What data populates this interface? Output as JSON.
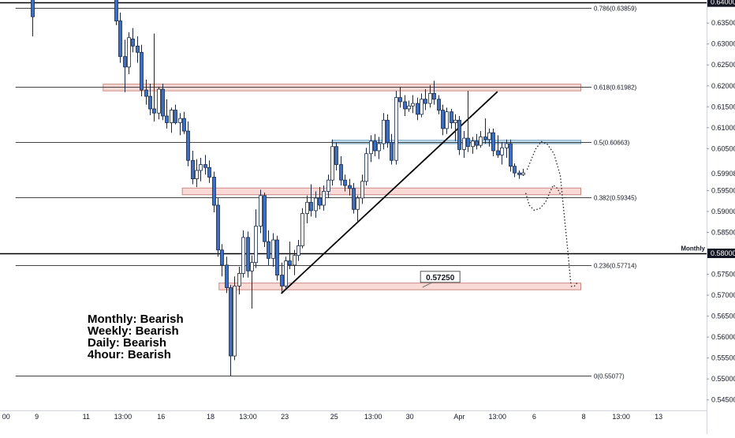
{
  "chart_data": {
    "type": "candlestick",
    "ylim": [
      0.5425,
      0.6405
    ],
    "x_range": [
      0,
      100
    ],
    "y_ticks": [
      "0.63500",
      "0.63000",
      "0.62500",
      "0.62000",
      "0.61500",
      "0.61000",
      "0.60500",
      "0.59500",
      "0.59000",
      "0.58500",
      "0.57500",
      "0.57000",
      "0.56500",
      "0.56000",
      "0.55500",
      "0.55000",
      "0.54500"
    ],
    "y_tick_values": [
      0.635,
      0.63,
      0.625,
      0.62,
      0.615,
      0.61,
      0.605,
      0.595,
      0.59,
      0.585,
      0.575,
      0.57,
      0.565,
      0.56,
      0.555,
      0.55,
      0.545
    ],
    "price_tags": [
      {
        "label": "0.64000",
        "value": 0.64,
        "style": "dark"
      },
      {
        "label": "0.58000",
        "value": 0.58,
        "style": "dark"
      },
      {
        "label": "0.59908",
        "value": 0.59908,
        "style": "plain"
      }
    ],
    "x_ticks": [
      {
        "label": "00",
        "x": 0.3
      },
      {
        "label": "9",
        "x": 5.2
      },
      {
        "label": "11",
        "x": 12.2
      },
      {
        "label": "13:00",
        "x": 17.4
      },
      {
        "label": "16",
        "x": 22.8
      },
      {
        "label": "18",
        "x": 29.8
      },
      {
        "label": "13:00",
        "x": 35.1
      },
      {
        "label": "23",
        "x": 40.3
      },
      {
        "label": "25",
        "x": 47.3
      },
      {
        "label": "13:00",
        "x": 52.8
      },
      {
        "label": "30",
        "x": 58.0
      },
      {
        "label": "Apr",
        "x": 65.0
      },
      {
        "label": "13:00",
        "x": 70.4
      },
      {
        "label": "6",
        "x": 75.6
      },
      {
        "label": "8",
        "x": 82.6
      },
      {
        "label": "13:00",
        "x": 87.9
      },
      {
        "label": "13",
        "x": 93.2
      }
    ],
    "fib_levels": [
      {
        "label": "0.786(0.63859)",
        "value": 0.63859
      },
      {
        "label": "0.618(0.61982)",
        "value": 0.61982
      },
      {
        "label": "0.5(0.60663)",
        "value": 0.60663
      },
      {
        "label": "0.382(0.59345)",
        "value": 0.59345
      },
      {
        "label": "0.236(0.57714)",
        "value": 0.57714
      },
      {
        "label": "0(0.55077)",
        "value": 0.55077
      }
    ],
    "fib_x_range": [
      2.2,
      83.7
    ],
    "level_lines": [
      {
        "label": "Monthly",
        "value": 0.58
      }
    ],
    "zones": [
      {
        "x": [
          14.6,
          82.2
        ],
        "y": [
          0.6188,
          0.6204
        ],
        "color": "red"
      },
      {
        "x": [
          25.8,
          82.2
        ],
        "y": [
          0.594,
          0.5956
        ],
        "color": "red"
      },
      {
        "x": [
          31.0,
          82.2
        ],
        "y": [
          0.5713,
          0.5729
        ],
        "color": "red"
      },
      {
        "x": [
          47.0,
          82.2
        ],
        "y": [
          0.6062,
          0.607
        ],
        "color": "blue"
      }
    ],
    "trendline": {
      "x": [
        39.8,
        70.4
      ],
      "y": [
        0.5704,
        0.6186
      ]
    },
    "projection_path": {
      "x": [
        74.6,
        75.8,
        76.6,
        77.4,
        78.4,
        79.3,
        79.8,
        80.3,
        80.8
      ],
      "y": [
        0.6,
        0.6049,
        0.6067,
        0.6062,
        0.6038,
        0.5985,
        0.59,
        0.5815,
        0.5725
      ]
    },
    "projection_path_2": {
      "x": [
        74.4,
        74.9,
        75.6,
        76.4,
        77.2,
        77.8,
        78.3,
        78.9,
        79.4
      ],
      "y": [
        0.5944,
        0.5915,
        0.5903,
        0.5907,
        0.5922,
        0.5945,
        0.5963,
        0.5955,
        0.5938
      ]
    },
    "projection_tail": {
      "x": [
        80.8,
        81.3,
        81.8
      ],
      "y": [
        0.5721,
        0.5722,
        0.5732
      ]
    },
    "callout": {
      "label": "0.57250",
      "value": 0.5725,
      "x": 62.3,
      "anchor_x": 59.8,
      "anchor_y": 0.5719
    },
    "annotations": [
      "Monthly: Bearish",
      "Weekly: Bearish",
      "Daily: Bearish",
      "4hour: Bearish"
    ],
    "candles": [
      {
        "x": 4.6,
        "o": 0.641,
        "h": 0.641,
        "l": 0.6318,
        "c": 0.6365
      },
      {
        "x": 16.4,
        "o": 0.6415,
        "h": 0.6415,
        "l": 0.6345,
        "c": 0.6355
      },
      {
        "x": 17.0,
        "o": 0.6355,
        "h": 0.6375,
        "l": 0.6255,
        "c": 0.627
      },
      {
        "x": 17.6,
        "o": 0.627,
        "h": 0.631,
        "l": 0.6185,
        "c": 0.6245
      },
      {
        "x": 18.2,
        "o": 0.6245,
        "h": 0.6328,
        "l": 0.6228,
        "c": 0.6315
      },
      {
        "x": 18.8,
        "o": 0.6312,
        "h": 0.6338,
        "l": 0.628,
        "c": 0.6295
      },
      {
        "x": 19.4,
        "o": 0.6295,
        "h": 0.6318,
        "l": 0.6255,
        "c": 0.628
      },
      {
        "x": 20.0,
        "o": 0.628,
        "h": 0.6298,
        "l": 0.6175,
        "c": 0.619
      },
      {
        "x": 20.6,
        "o": 0.619,
        "h": 0.6215,
        "l": 0.6155,
        "c": 0.6175
      },
      {
        "x": 21.2,
        "o": 0.6175,
        "h": 0.6205,
        "l": 0.613,
        "c": 0.6145
      },
      {
        "x": 21.8,
        "o": 0.6145,
        "h": 0.6325,
        "l": 0.6115,
        "c": 0.6135
      },
      {
        "x": 22.4,
        "o": 0.6135,
        "h": 0.6198,
        "l": 0.612,
        "c": 0.6192
      },
      {
        "x": 23.0,
        "o": 0.6192,
        "h": 0.6205,
        "l": 0.6118,
        "c": 0.6128
      },
      {
        "x": 23.6,
        "o": 0.6128,
        "h": 0.6168,
        "l": 0.6098,
        "c": 0.6112
      },
      {
        "x": 24.2,
        "o": 0.6112,
        "h": 0.6148,
        "l": 0.6088,
        "c": 0.6142
      },
      {
        "x": 24.8,
        "o": 0.6142,
        "h": 0.6155,
        "l": 0.6108,
        "c": 0.6112
      },
      {
        "x": 25.4,
        "o": 0.6112,
        "h": 0.6135,
        "l": 0.6082,
        "c": 0.6122
      },
      {
        "x": 26.0,
        "o": 0.6122,
        "h": 0.6138,
        "l": 0.6085,
        "c": 0.6092
      },
      {
        "x": 26.6,
        "o": 0.6092,
        "h": 0.6115,
        "l": 0.6008,
        "c": 0.6022
      },
      {
        "x": 27.2,
        "o": 0.6022,
        "h": 0.6045,
        "l": 0.5965,
        "c": 0.5978
      },
      {
        "x": 27.8,
        "o": 0.5978,
        "h": 0.6025,
        "l": 0.5958,
        "c": 0.5998
      },
      {
        "x": 28.4,
        "o": 0.5998,
        "h": 0.6028,
        "l": 0.5972,
        "c": 0.6012
      },
      {
        "x": 29.0,
        "o": 0.6012,
        "h": 0.6035,
        "l": 0.5988,
        "c": 0.6005
      },
      {
        "x": 29.6,
        "o": 0.6005,
        "h": 0.6022,
        "l": 0.5968,
        "c": 0.5982
      },
      {
        "x": 30.2,
        "o": 0.5982,
        "h": 0.5995,
        "l": 0.5898,
        "c": 0.5915
      },
      {
        "x": 30.8,
        "o": 0.5915,
        "h": 0.5932,
        "l": 0.5792,
        "c": 0.5808
      },
      {
        "x": 31.4,
        "o": 0.5808,
        "h": 0.5822,
        "l": 0.5745,
        "c": 0.5772
      },
      {
        "x": 32.0,
        "o": 0.5772,
        "h": 0.5792,
        "l": 0.5705,
        "c": 0.5718
      },
      {
        "x": 32.6,
        "o": 0.5718,
        "h": 0.5725,
        "l": 0.5508,
        "c": 0.5555
      },
      {
        "x": 33.2,
        "o": 0.5555,
        "h": 0.5745,
        "l": 0.5545,
        "c": 0.5722
      },
      {
        "x": 33.8,
        "o": 0.5722,
        "h": 0.5768,
        "l": 0.5702,
        "c": 0.5752
      },
      {
        "x": 34.4,
        "o": 0.5752,
        "h": 0.5855,
        "l": 0.5742,
        "c": 0.5838
      },
      {
        "x": 35.0,
        "o": 0.5838,
        "h": 0.5852,
        "l": 0.5742,
        "c": 0.5758
      },
      {
        "x": 35.6,
        "o": 0.5758,
        "h": 0.5795,
        "l": 0.5668,
        "c": 0.5778
      },
      {
        "x": 36.2,
        "o": 0.5778,
        "h": 0.5905,
        "l": 0.5765,
        "c": 0.5865
      },
      {
        "x": 36.8,
        "o": 0.5865,
        "h": 0.5952,
        "l": 0.5848,
        "c": 0.5938
      },
      {
        "x": 37.4,
        "o": 0.5938,
        "h": 0.5945,
        "l": 0.5815,
        "c": 0.5828
      },
      {
        "x": 38.0,
        "o": 0.5828,
        "h": 0.5855,
        "l": 0.5772,
        "c": 0.5788
      },
      {
        "x": 38.6,
        "o": 0.5788,
        "h": 0.5848,
        "l": 0.5768,
        "c": 0.5832
      },
      {
        "x": 39.2,
        "o": 0.5832,
        "h": 0.5842,
        "l": 0.5735,
        "c": 0.5748
      },
      {
        "x": 39.8,
        "o": 0.5748,
        "h": 0.5778,
        "l": 0.5708,
        "c": 0.5722
      },
      {
        "x": 40.4,
        "o": 0.5722,
        "h": 0.5792,
        "l": 0.5712,
        "c": 0.5782
      },
      {
        "x": 41.0,
        "o": 0.5782,
        "h": 0.5828,
        "l": 0.5762,
        "c": 0.5772
      },
      {
        "x": 41.6,
        "o": 0.5772,
        "h": 0.5808,
        "l": 0.5748,
        "c": 0.5795
      },
      {
        "x": 42.2,
        "o": 0.5795,
        "h": 0.5832,
        "l": 0.5782,
        "c": 0.5818
      },
      {
        "x": 42.8,
        "o": 0.5818,
        "h": 0.5908,
        "l": 0.5812,
        "c": 0.5895
      },
      {
        "x": 43.4,
        "o": 0.5895,
        "h": 0.5938,
        "l": 0.5872,
        "c": 0.5922
      },
      {
        "x": 44.0,
        "o": 0.5922,
        "h": 0.5965,
        "l": 0.5888,
        "c": 0.5902
      },
      {
        "x": 44.6,
        "o": 0.5902,
        "h": 0.5948,
        "l": 0.5885,
        "c": 0.5932
      },
      {
        "x": 45.2,
        "o": 0.5932,
        "h": 0.5958,
        "l": 0.5905,
        "c": 0.5915
      },
      {
        "x": 45.8,
        "o": 0.5915,
        "h": 0.5962,
        "l": 0.5902,
        "c": 0.5948
      },
      {
        "x": 46.4,
        "o": 0.5948,
        "h": 0.5988,
        "l": 0.5932,
        "c": 0.5975
      },
      {
        "x": 47.0,
        "o": 0.5975,
        "h": 0.6072,
        "l": 0.5962,
        "c": 0.6055
      },
      {
        "x": 47.6,
        "o": 0.6055,
        "h": 0.6065,
        "l": 0.5998,
        "c": 0.6012
      },
      {
        "x": 48.2,
        "o": 0.6012,
        "h": 0.6032,
        "l": 0.5962,
        "c": 0.5975
      },
      {
        "x": 48.8,
        "o": 0.5975,
        "h": 0.5988,
        "l": 0.5948,
        "c": 0.5962
      },
      {
        "x": 49.4,
        "o": 0.5962,
        "h": 0.5978,
        "l": 0.5938,
        "c": 0.5955
      },
      {
        "x": 50.0,
        "o": 0.5955,
        "h": 0.5968,
        "l": 0.5895,
        "c": 0.5905
      },
      {
        "x": 50.6,
        "o": 0.5905,
        "h": 0.5938,
        "l": 0.5872,
        "c": 0.5932
      },
      {
        "x": 51.2,
        "o": 0.5932,
        "h": 0.5988,
        "l": 0.5918,
        "c": 0.5972
      },
      {
        "x": 51.8,
        "o": 0.5972,
        "h": 0.6052,
        "l": 0.5962,
        "c": 0.6038
      },
      {
        "x": 52.4,
        "o": 0.6038,
        "h": 0.6082,
        "l": 0.6018,
        "c": 0.6068
      },
      {
        "x": 53.0,
        "o": 0.6068,
        "h": 0.6085,
        "l": 0.6032,
        "c": 0.6045
      },
      {
        "x": 53.6,
        "o": 0.6045,
        "h": 0.6078,
        "l": 0.6025,
        "c": 0.6062
      },
      {
        "x": 54.2,
        "o": 0.6062,
        "h": 0.6135,
        "l": 0.6048,
        "c": 0.6118
      },
      {
        "x": 54.8,
        "o": 0.6118,
        "h": 0.6132,
        "l": 0.6052,
        "c": 0.6065
      },
      {
        "x": 55.4,
        "o": 0.6065,
        "h": 0.6085,
        "l": 0.6012,
        "c": 0.6022
      },
      {
        "x": 56.0,
        "o": 0.6022,
        "h": 0.6188,
        "l": 0.6012,
        "c": 0.6172
      },
      {
        "x": 56.6,
        "o": 0.6172,
        "h": 0.6198,
        "l": 0.6148,
        "c": 0.6162
      },
      {
        "x": 57.2,
        "o": 0.6162,
        "h": 0.6178,
        "l": 0.6128,
        "c": 0.6145
      },
      {
        "x": 57.8,
        "o": 0.6145,
        "h": 0.6165,
        "l": 0.6138,
        "c": 0.6152
      },
      {
        "x": 58.4,
        "o": 0.6152,
        "h": 0.6178,
        "l": 0.6135,
        "c": 0.6158
      },
      {
        "x": 59.0,
        "o": 0.6158,
        "h": 0.6172,
        "l": 0.6118,
        "c": 0.6132
      },
      {
        "x": 59.6,
        "o": 0.6132,
        "h": 0.6182,
        "l": 0.6125,
        "c": 0.6168
      },
      {
        "x": 60.2,
        "o": 0.6168,
        "h": 0.6192,
        "l": 0.6142,
        "c": 0.6158
      },
      {
        "x": 60.8,
        "o": 0.6158,
        "h": 0.6202,
        "l": 0.6148,
        "c": 0.6182
      },
      {
        "x": 61.4,
        "o": 0.6182,
        "h": 0.6212,
        "l": 0.6155,
        "c": 0.6168
      },
      {
        "x": 62.0,
        "o": 0.6168,
        "h": 0.6178,
        "l": 0.6132,
        "c": 0.6142
      },
      {
        "x": 62.6,
        "o": 0.6142,
        "h": 0.6155,
        "l": 0.6082,
        "c": 0.6098
      },
      {
        "x": 63.2,
        "o": 0.6098,
        "h": 0.6148,
        "l": 0.6085,
        "c": 0.6138
      },
      {
        "x": 63.8,
        "o": 0.6138,
        "h": 0.6145,
        "l": 0.6098,
        "c": 0.6112
      },
      {
        "x": 64.4,
        "o": 0.6112,
        "h": 0.6132,
        "l": 0.6068,
        "c": 0.6118
      },
      {
        "x": 65.0,
        "o": 0.6118,
        "h": 0.6128,
        "l": 0.6035,
        "c": 0.6048
      },
      {
        "x": 65.6,
        "o": 0.6048,
        "h": 0.6092,
        "l": 0.6028,
        "c": 0.6075
      },
      {
        "x": 66.2,
        "o": 0.6075,
        "h": 0.6188,
        "l": 0.6042,
        "c": 0.6055
      },
      {
        "x": 66.8,
        "o": 0.6055,
        "h": 0.6078,
        "l": 0.6038,
        "c": 0.6068
      },
      {
        "x": 67.4,
        "o": 0.6068,
        "h": 0.6085,
        "l": 0.6048,
        "c": 0.6058
      },
      {
        "x": 68.0,
        "o": 0.6058,
        "h": 0.6092,
        "l": 0.6052,
        "c": 0.6078
      },
      {
        "x": 68.6,
        "o": 0.6078,
        "h": 0.6122,
        "l": 0.6062,
        "c": 0.6072
      },
      {
        "x": 69.2,
        "o": 0.6072,
        "h": 0.6098,
        "l": 0.6055,
        "c": 0.6088
      },
      {
        "x": 69.8,
        "o": 0.6088,
        "h": 0.6098,
        "l": 0.6032,
        "c": 0.6045
      },
      {
        "x": 70.4,
        "o": 0.6045,
        "h": 0.6082,
        "l": 0.6028,
        "c": 0.6035
      },
      {
        "x": 71.0,
        "o": 0.6035,
        "h": 0.6065,
        "l": 0.6012,
        "c": 0.6052
      },
      {
        "x": 71.6,
        "o": 0.6052,
        "h": 0.6072,
        "l": 0.6028,
        "c": 0.6062
      },
      {
        "x": 72.2,
        "o": 0.6062,
        "h": 0.6072,
        "l": 0.5995,
        "c": 0.6008
      },
      {
        "x": 72.8,
        "o": 0.6008,
        "h": 0.6015,
        "l": 0.5982,
        "c": 0.5992
      },
      {
        "x": 73.4,
        "o": 0.5992,
        "h": 0.5998,
        "l": 0.5978,
        "c": 0.5988
      },
      {
        "x": 74.0,
        "o": 0.5988,
        "h": 0.6002,
        "l": 0.5985,
        "c": 0.5992
      }
    ],
    "colors": {
      "up_body": "#ffffff",
      "down_body": "#3d6fc4",
      "candle_outline": "#1a2a45",
      "wick": "#1a2a45",
      "zone_red_fill": "#f8d3cf",
      "zone_red_stroke": "#c98a84",
      "zone_blue_fill": "#b9dcf0",
      "zone_blue_stroke": "#6a9cc0",
      "fib_line": "#444444",
      "level_line": "#000000",
      "trendline": "#000000",
      "projection": "#222222",
      "axis_bg": "#ffffff",
      "tag_dark_bg": "#131722"
    }
  }
}
